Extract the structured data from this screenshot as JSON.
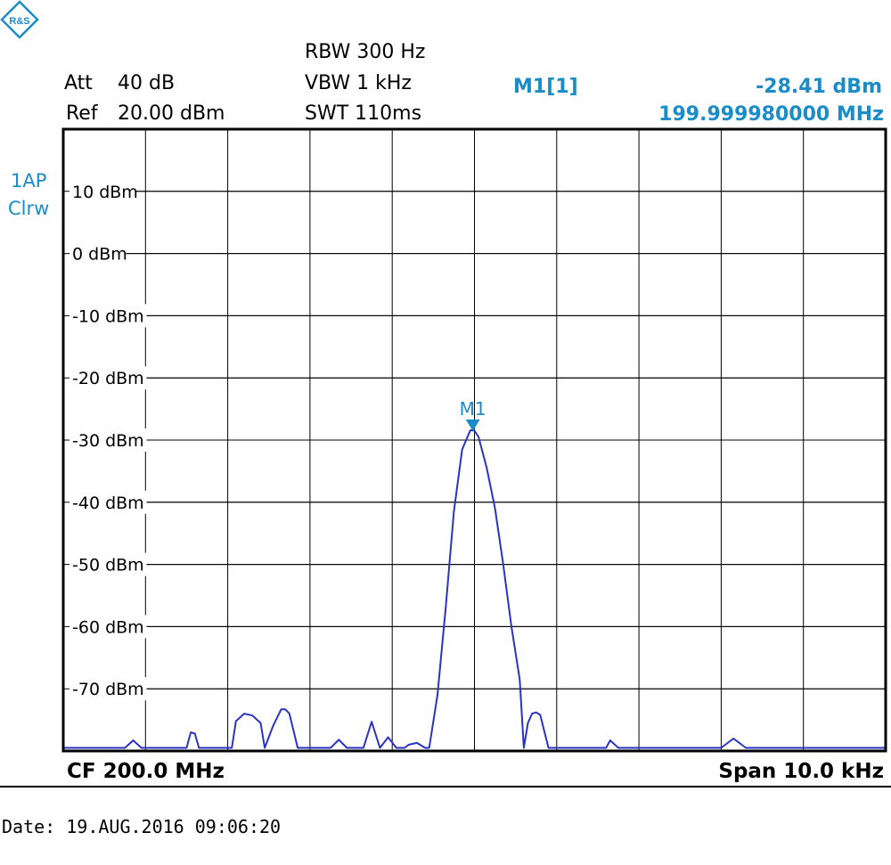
{
  "header": {
    "att_label": "Att",
    "att_value": "40 dB",
    "ref_label": "Ref",
    "ref_value": "20.00 dBm",
    "rbw": "RBW  300 Hz",
    "vbw": "VBW  1 kHz",
    "swt": "SWT  110ms",
    "marker_label": "M1[1]",
    "marker_level": "-28.41 dBm",
    "marker_freq": "199.999980000 MHz"
  },
  "trace_info": {
    "line1": "1AP",
    "line2": "Clrw"
  },
  "footer": {
    "cf": "CF  200.0 MHz",
    "span": "Span  10.0 kHz",
    "date": "Date: 19.AUG.2016  09:06:20"
  },
  "colors": {
    "trace": "#2a33c4",
    "marker": "#1a8cc7",
    "grid": "#000000"
  },
  "icons": {
    "logo": "rohde-schwarz-logo"
  },
  "chart_data": {
    "type": "line",
    "title": "",
    "xlabel": "",
    "ylabel": "",
    "x_unit": "kHz offset from CF",
    "xlim": [
      -5,
      5
    ],
    "ylim": [
      -80,
      20
    ],
    "y_ticks": [
      {
        "value": 10,
        "label": "10 dBm"
      },
      {
        "value": 0,
        "label": "0 dBm"
      },
      {
        "value": -10,
        "label": "-10 dBm"
      },
      {
        "value": -20,
        "label": "-20 dBm"
      },
      {
        "value": -30,
        "label": "-30 dBm"
      },
      {
        "value": -40,
        "label": "-40 dBm"
      },
      {
        "value": -50,
        "label": "-50 dBm"
      },
      {
        "value": -60,
        "label": "-60 dBm"
      },
      {
        "value": -70,
        "label": "-70 dBm"
      }
    ],
    "grid": true,
    "marker": {
      "name": "M1",
      "x": -0.02,
      "y": -28.41
    },
    "series": [
      {
        "x": [
          -5.0,
          -4.25,
          -4.15,
          -4.05,
          -3.95,
          -3.85,
          -3.5,
          -3.45,
          -3.4,
          -3.35,
          -3.3,
          -3.2,
          -2.95,
          -2.9,
          -2.8,
          -2.7,
          -2.6,
          -2.55,
          -2.45,
          -2.35,
          -2.3,
          -2.25,
          -2.15,
          -2.05,
          -1.95,
          -1.9,
          -1.75,
          -1.65,
          -1.55,
          -1.5,
          -1.35,
          -1.25,
          -1.15,
          -1.05,
          -0.95,
          -0.85,
          -0.8,
          -0.7,
          -0.6,
          -0.55,
          -0.45,
          -0.35,
          -0.25,
          -0.15,
          -0.05,
          0.0,
          0.05,
          0.15,
          0.25,
          0.35,
          0.45,
          0.55,
          0.6,
          0.65,
          0.7,
          0.75,
          0.8,
          0.9,
          1.0,
          1.1,
          1.2,
          1.3,
          1.4,
          1.6,
          1.65,
          1.75,
          1.85,
          3.0,
          3.15,
          3.3,
          3.45,
          5.0
        ],
        "y": [
          -79.5,
          -79.5,
          -78.3,
          -79.5,
          -79.5,
          -79.5,
          -79.5,
          -77.0,
          -77.2,
          -79.5,
          -79.5,
          -79.5,
          -79.5,
          -75.2,
          -74.0,
          -74.3,
          -75.5,
          -79.5,
          -76.0,
          -73.3,
          -73.3,
          -74.0,
          -79.5,
          -79.5,
          -79.5,
          -79.5,
          -79.5,
          -78.2,
          -79.5,
          -79.5,
          -79.5,
          -75.3,
          -79.5,
          -77.8,
          -79.5,
          -79.5,
          -79.0,
          -78.7,
          -79.5,
          -79.5,
          -71.0,
          -57.0,
          -41.5,
          -31.5,
          -28.41,
          -28.5,
          -29.5,
          -34.5,
          -41.0,
          -50.0,
          -60.0,
          -68.5,
          -79.5,
          -75.5,
          -74.0,
          -73.8,
          -74.2,
          -79.5,
          -79.5,
          -79.5,
          -79.5,
          -79.5,
          -79.5,
          -79.5,
          -78.3,
          -79.5,
          -79.5,
          -79.5,
          -78.0,
          -79.5,
          -79.5,
          -79.5
        ]
      }
    ]
  }
}
